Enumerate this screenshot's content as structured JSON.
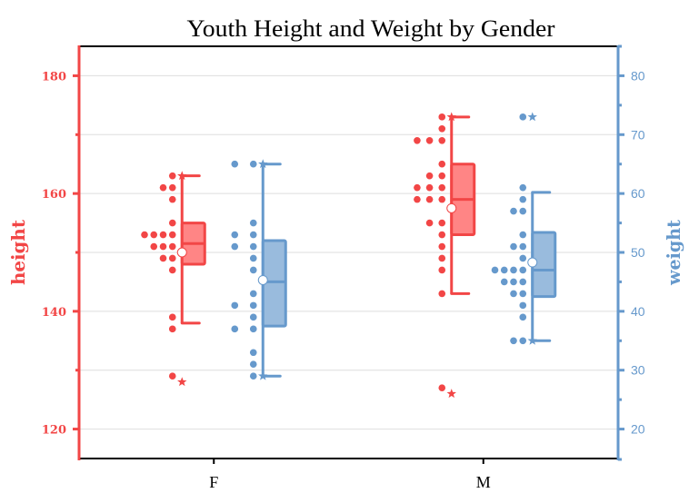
{
  "chart_data": {
    "type": "box",
    "overlay": "dot",
    "title": "Youth Height and Weight by Gender",
    "xlabel": "",
    "categories": [
      "F",
      "M"
    ],
    "grid": true,
    "gridlines_left_units": [
      120,
      130,
      140,
      150,
      160,
      170,
      180
    ],
    "y_left": {
      "label": "height",
      "range": [
        115,
        185
      ],
      "ticks": [
        120,
        140,
        160,
        180
      ],
      "tick_labels": [
        "120",
        "140",
        "160",
        "180"
      ],
      "minor_ticks": [
        130,
        150,
        170
      ],
      "color": "#F24646"
    },
    "y_right": {
      "label": "weight",
      "range": [
        15,
        85
      ],
      "ticks": [
        20,
        30,
        40,
        50,
        60,
        70,
        80
      ],
      "tick_labels": [
        "20",
        "30",
        "40",
        "50",
        "60",
        "70",
        "80"
      ],
      "minor_ticks": [
        25,
        35,
        45,
        55,
        65,
        75
      ],
      "color": "#6699CC"
    },
    "series": [
      {
        "name": "height",
        "axis": "left",
        "color": "#F24646",
        "fill": "#FF8585",
        "groups": [
          {
            "category": "F",
            "whisker_low": 138,
            "q1": 148,
            "median": 151.5,
            "q3": 155,
            "whisker_high": 163,
            "mean": 150,
            "min": 128,
            "max": 163,
            "dots": [
              {
                "value": 163,
                "count": 1
              },
              {
                "value": 161,
                "count": 2
              },
              {
                "value": 159,
                "count": 1
              },
              {
                "value": 155,
                "count": 1
              },
              {
                "value": 153,
                "count": 4
              },
              {
                "value": 151,
                "count": 3
              },
              {
                "value": 149,
                "count": 2
              },
              {
                "value": 147,
                "count": 1
              },
              {
                "value": 139,
                "count": 1
              },
              {
                "value": 137,
                "count": 1
              },
              {
                "value": 129,
                "count": 1
              }
            ]
          },
          {
            "category": "M",
            "whisker_low": 143,
            "q1": 153,
            "median": 159,
            "q3": 165,
            "whisker_high": 173,
            "mean": 157.5,
            "min": 126,
            "max": 173,
            "dots": [
              {
                "value": 173,
                "count": 1
              },
              {
                "value": 171,
                "count": 1
              },
              {
                "value": 169,
                "count": 3
              },
              {
                "value": 165,
                "count": 1
              },
              {
                "value": 163,
                "count": 2
              },
              {
                "value": 161,
                "count": 3
              },
              {
                "value": 159,
                "count": 3
              },
              {
                "value": 155,
                "count": 2
              },
              {
                "value": 153,
                "count": 1
              },
              {
                "value": 151,
                "count": 1
              },
              {
                "value": 149,
                "count": 1
              },
              {
                "value": 147,
                "count": 1
              },
              {
                "value": 143,
                "count": 1
              },
              {
                "value": 127,
                "count": 1
              }
            ]
          }
        ]
      },
      {
        "name": "weight",
        "axis": "right",
        "color": "#6699CC",
        "fill": "#99BBDD",
        "groups": [
          {
            "category": "F",
            "whisker_low": 29,
            "q1": 37.5,
            "median": 45,
            "q3": 52,
            "whisker_high": 65,
            "mean": 45.3,
            "min": 29,
            "max": 65,
            "dots": [
              {
                "value": 65,
                "count": 2
              },
              {
                "value": 55,
                "count": 1
              },
              {
                "value": 53,
                "count": 2
              },
              {
                "value": 51,
                "count": 2
              },
              {
                "value": 49,
                "count": 1
              },
              {
                "value": 47,
                "count": 1
              },
              {
                "value": 43,
                "count": 1
              },
              {
                "value": 41,
                "count": 2
              },
              {
                "value": 39,
                "count": 1
              },
              {
                "value": 37,
                "count": 2
              },
              {
                "value": 33,
                "count": 1
              },
              {
                "value": 31,
                "count": 1
              },
              {
                "value": 29,
                "count": 1
              }
            ]
          },
          {
            "category": "M",
            "whisker_low": 35,
            "q1": 42.5,
            "median": 47,
            "q3": 53.4,
            "whisker_high": 60.2,
            "mean": 48.3,
            "min": 35,
            "max": 73,
            "dots": [
              {
                "value": 73,
                "count": 1
              },
              {
                "value": 61,
                "count": 1
              },
              {
                "value": 59,
                "count": 1
              },
              {
                "value": 57,
                "count": 2
              },
              {
                "value": 53,
                "count": 1
              },
              {
                "value": 51,
                "count": 2
              },
              {
                "value": 49,
                "count": 1
              },
              {
                "value": 47,
                "count": 4
              },
              {
                "value": 45,
                "count": 3
              },
              {
                "value": 43,
                "count": 2
              },
              {
                "value": 41,
                "count": 1
              },
              {
                "value": 39,
                "count": 1
              },
              {
                "value": 35,
                "count": 2
              }
            ]
          }
        ]
      }
    ]
  },
  "colors": {
    "frame": "#000000",
    "grid": "#DEDEDE",
    "mean_marker_fill": "#FFFFFF"
  }
}
